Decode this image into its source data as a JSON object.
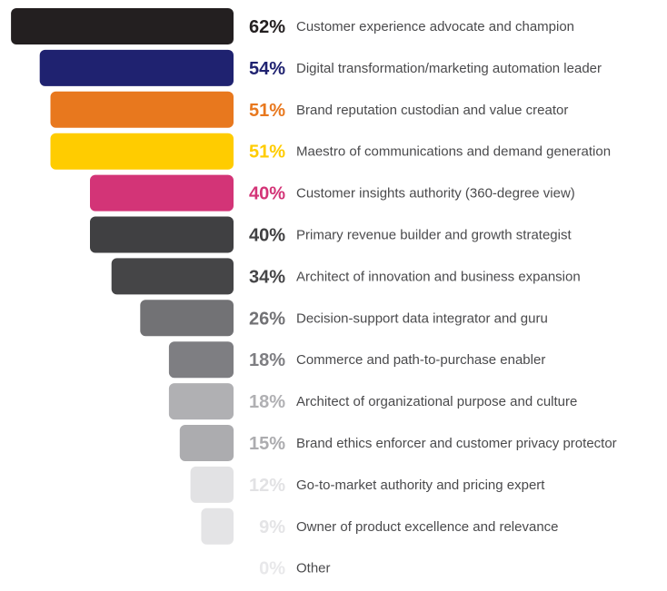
{
  "chart_data": {
    "type": "bar",
    "orientation": "horizontal",
    "alignment": "right-aligned bars, label to the right",
    "bars": [
      {
        "label": "Customer experience advocate and champion",
        "value": 62,
        "value_label": "62%",
        "bar_color": "#231F20",
        "value_color": "#231F20"
      },
      {
        "label": "Digital transformation/marketing automation leader",
        "value": 54,
        "value_label": "54%",
        "bar_color": "#1F2270",
        "value_color": "#1F2270"
      },
      {
        "label": "Brand reputation custodian and value creator",
        "value": 51,
        "value_label": "51%",
        "bar_color": "#E8781E",
        "value_color": "#E8781E"
      },
      {
        "label": "Maestro of communications and demand generation",
        "value": 51,
        "value_label": "51%",
        "bar_color": "#FFCC00",
        "value_color": "#FFCC00"
      },
      {
        "label": "Customer insights authority (360-degree view)",
        "value": 40,
        "value_label": "40%",
        "bar_color": "#D33477",
        "value_color": "#D33477"
      },
      {
        "label": "Primary revenue builder and growth strategist",
        "value": 40,
        "value_label": "40%",
        "bar_color": "#404042",
        "value_color": "#404042"
      },
      {
        "label": "Architect of innovation and business expansion",
        "value": 34,
        "value_label": "34%",
        "bar_color": "#454547",
        "value_color": "#454547"
      },
      {
        "label": "Decision-support data integrator and guru",
        "value": 26,
        "value_label": "26%",
        "bar_color": "#727275",
        "value_color": "#727275"
      },
      {
        "label": "Commerce and path-to-purchase enabler",
        "value": 18,
        "value_label": "18%",
        "bar_color": "#7E7E82",
        "value_color": "#7E7E82"
      },
      {
        "label": "Architect of organizational purpose and culture",
        "value": 18,
        "value_label": "18%",
        "bar_color": "#B0B0B3",
        "value_color": "#B0B0B3"
      },
      {
        "label": "Brand ethics enforcer and customer privacy protector",
        "value": 15,
        "value_label": "15%",
        "bar_color": "#ACACAF",
        "value_color": "#ACACAF"
      },
      {
        "label": "Go-to-market authority and pricing expert",
        "value": 12,
        "value_label": "12%",
        "bar_color": "#E2E2E4",
        "value_color": "#E2E2E4"
      },
      {
        "label": "Owner of product excellence and relevance",
        "value": 9,
        "value_label": "9%",
        "bar_color": "#E4E4E6",
        "value_color": "#E4E4E6"
      },
      {
        "label": "Other",
        "value": 0,
        "value_label": "0%",
        "bar_color": "#E8E8EA",
        "value_color": "#E8E8EA"
      }
    ],
    "label_color": "#4A4A4C"
  }
}
